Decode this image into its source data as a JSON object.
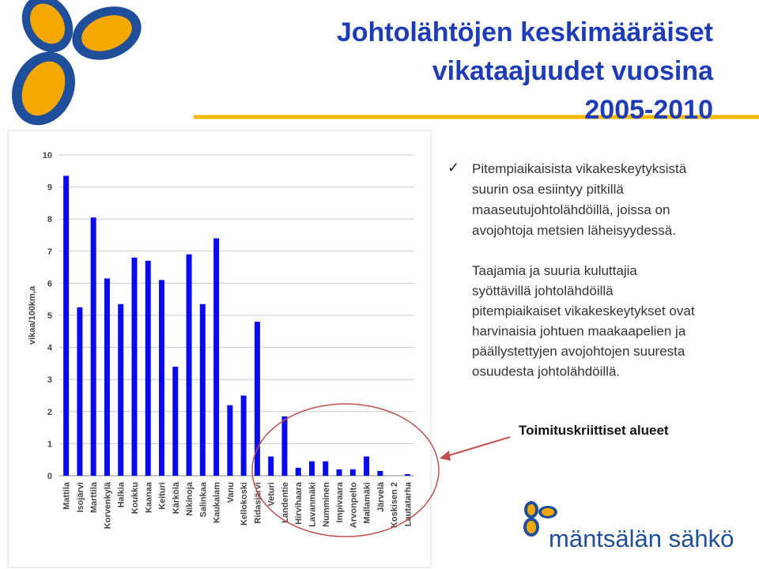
{
  "slide": {
    "title_lines": [
      "Johtolähtöjen keskimääräiset",
      "vikataajuudet vuosina",
      "2005-2010"
    ],
    "bullet_1_lines": [
      "Pitempiaikaisista vikakeskeytyksistä",
      "suurin osa esiintyy pitkillä",
      "maaseutujohtolähdöillä, joissa on",
      "avojohtoja metsien läheisyydessä."
    ],
    "bullet_2_lines": [
      "Taajamia ja suuria kuluttajia",
      "syöttävillä johtolähdöillä",
      "pitempiaikaiset vikakeskeytykset ovat",
      "harvinaisia johtuen maakaapelien ja",
      "päällystettyjen avojohtojen suuresta",
      "osuudesta johtolähdöillä."
    ],
    "callout": "Toimituskriittiset alueet",
    "logo_text": "mäntsälän sähkö"
  },
  "chart_data": {
    "type": "bar",
    "y_label": "vikaa/100km,a",
    "categories": [
      "Mattila",
      "Isojärvi",
      "Marttila",
      "Korvenkylä",
      "Halkia",
      "Koukku",
      "Kaanaa",
      "Keituri",
      "Kärkölä",
      "Nikinoja",
      "Salinkaa",
      "Kaukalam",
      "Vanu",
      "Kellokoski",
      "Ridasjärvi",
      "Veturi",
      "Landentie",
      "Hirvihaara",
      "Lavanmäki",
      "Numminen",
      "Impivaara",
      "Arvonpelto",
      "Mallamäki",
      "Järvelä",
      "Koskisen 2",
      "Lautatarha"
    ],
    "values": [
      9.35,
      5.25,
      8.05,
      6.15,
      5.35,
      6.8,
      6.7,
      6.1,
      3.4,
      6.9,
      5.35,
      7.4,
      2.2,
      2.5,
      4.8,
      0.6,
      1.85,
      0.25,
      0.45,
      0.45,
      0.2,
      0.2,
      0.6,
      0.15,
      0,
      0.05
    ],
    "color": "#0a0aee",
    "ylim": [
      0,
      10
    ],
    "yticks": [
      0,
      1,
      2,
      3,
      4,
      5,
      6,
      7,
      8,
      9,
      10
    ],
    "grid": true
  }
}
